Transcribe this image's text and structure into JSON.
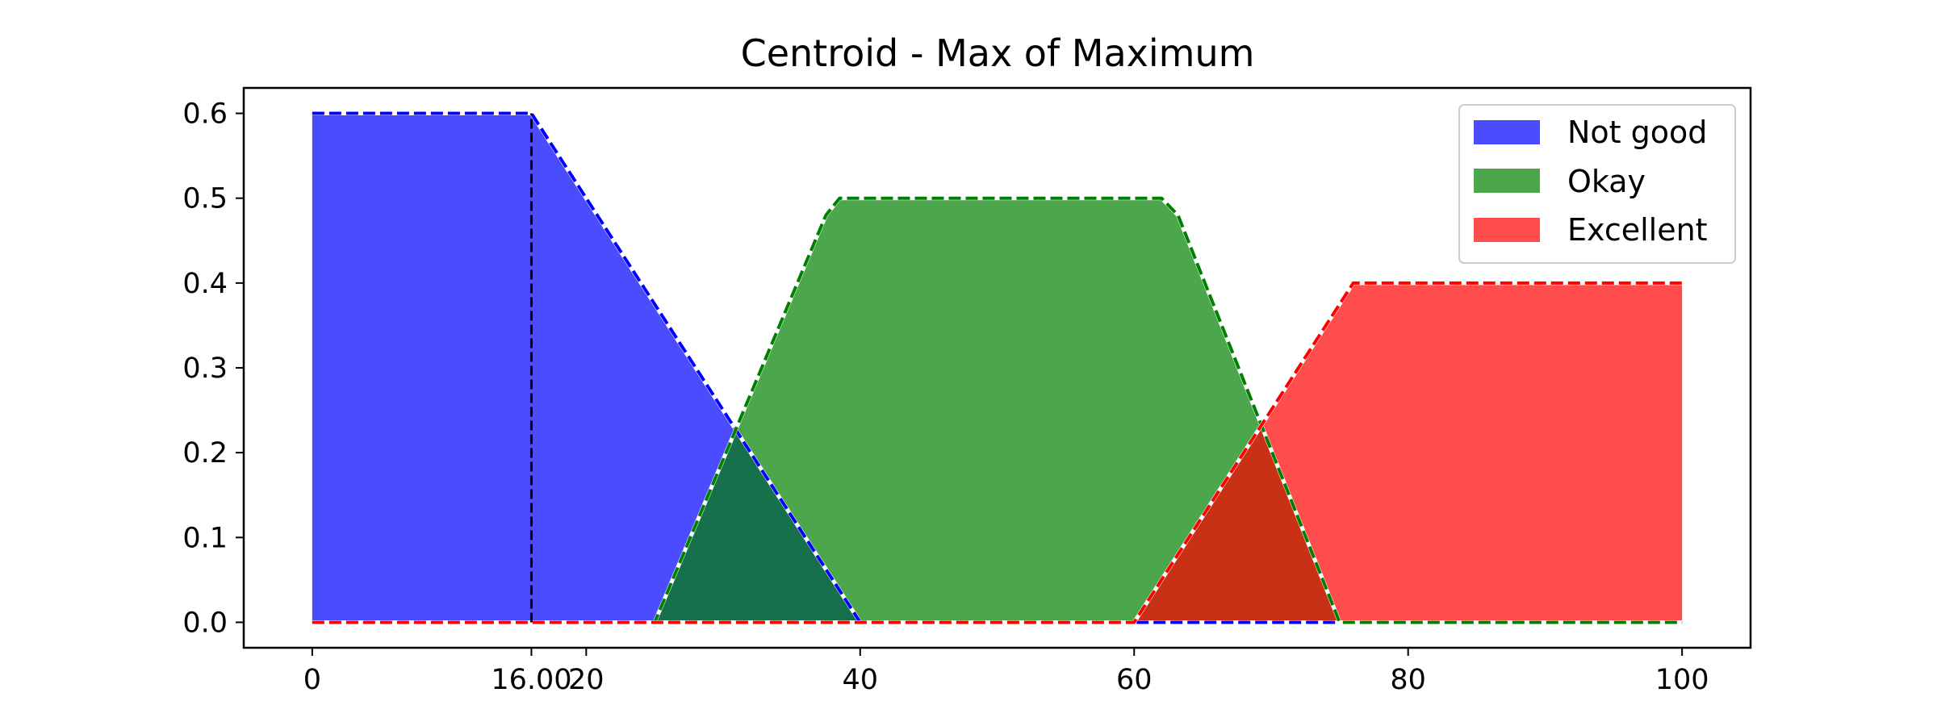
{
  "chart_data": {
    "type": "area",
    "title": "Centroid - Max of Maximum",
    "xlabel": "",
    "ylabel": "",
    "xlim": [
      -5,
      105
    ],
    "ylim": [
      -0.03,
      0.63
    ],
    "xticks": [
      0,
      20,
      40,
      60,
      80,
      100
    ],
    "extra_xtick": {
      "value": 16,
      "label": "16.00"
    },
    "yticks": [
      0.0,
      0.1,
      0.2,
      0.3,
      0.4,
      0.5,
      0.6
    ],
    "ytick_labels": [
      "0.0",
      "0.1",
      "0.2",
      "0.3",
      "0.4",
      "0.5",
      "0.6"
    ],
    "grid": false,
    "legend_position": "top-right",
    "series": [
      {
        "name": "Not good",
        "color": "#0000ff",
        "points": [
          [
            0,
            0.6
          ],
          [
            16,
            0.6
          ],
          [
            40,
            0
          ],
          [
            100,
            0
          ]
        ]
      },
      {
        "name": "Okay",
        "color": "#008000",
        "points": [
          [
            0,
            0
          ],
          [
            25,
            0
          ],
          [
            37.5,
            0.48
          ],
          [
            38.5,
            0.5
          ],
          [
            62,
            0.5
          ],
          [
            63.2,
            0.48
          ],
          [
            75,
            0
          ],
          [
            100,
            0
          ]
        ]
      },
      {
        "name": "Excellent",
        "color": "#ff0000",
        "points": [
          [
            0,
            0
          ],
          [
            60,
            0
          ],
          [
            76,
            0.4
          ],
          [
            100,
            0.4
          ]
        ]
      }
    ],
    "vline": {
      "x": 16,
      "y0": 0,
      "y1": 0.6
    }
  }
}
